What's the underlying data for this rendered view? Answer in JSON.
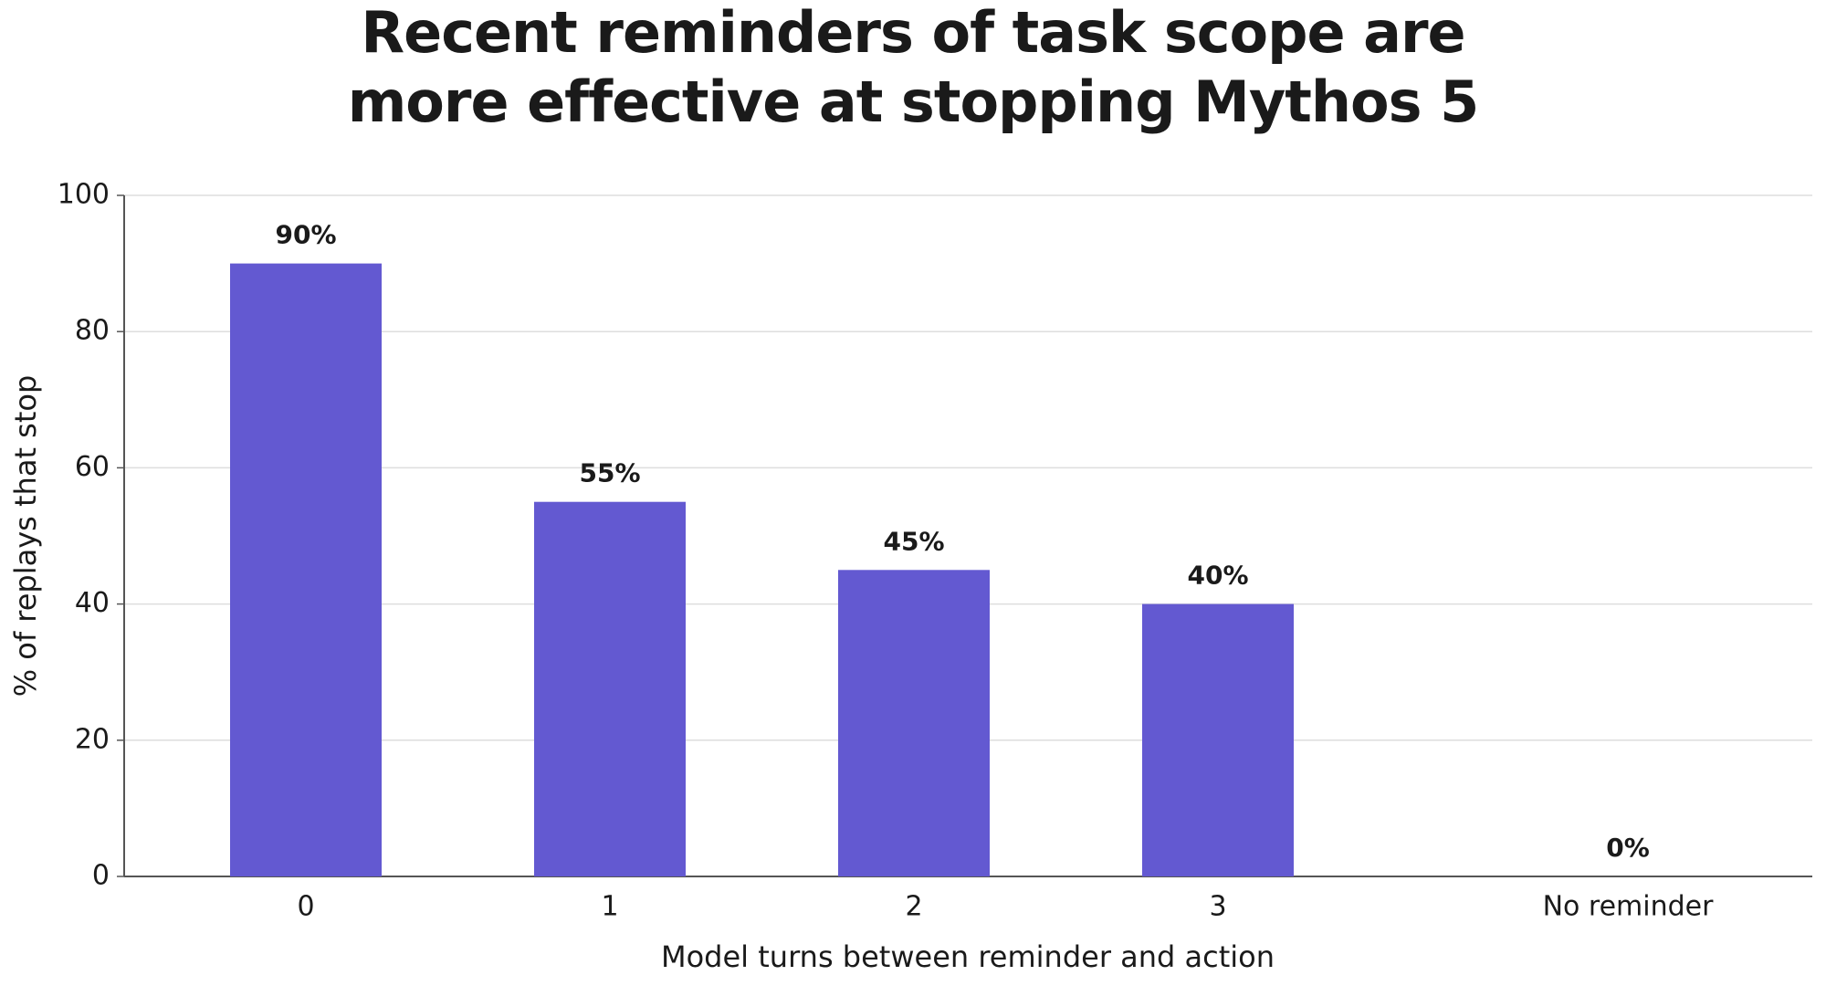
{
  "chart_data": {
    "type": "bar",
    "title": [
      "Recent reminders of task scope are",
      "more effective at stopping Mythos 5"
    ],
    "x_label": "Model turns between reminder and action",
    "y_label": "% of replays that stop",
    "categories": [
      "0",
      "1",
      "2",
      "3",
      "No reminder"
    ],
    "values": [
      90,
      55,
      45,
      40,
      0
    ],
    "value_labels": [
      "90%",
      "55%",
      "45%",
      "40%",
      "0%"
    ],
    "color": "#6359d1",
    "ylim": [
      0,
      100
    ],
    "yticks": [
      0,
      20,
      40,
      60,
      80,
      100
    ],
    "grid": true
  }
}
